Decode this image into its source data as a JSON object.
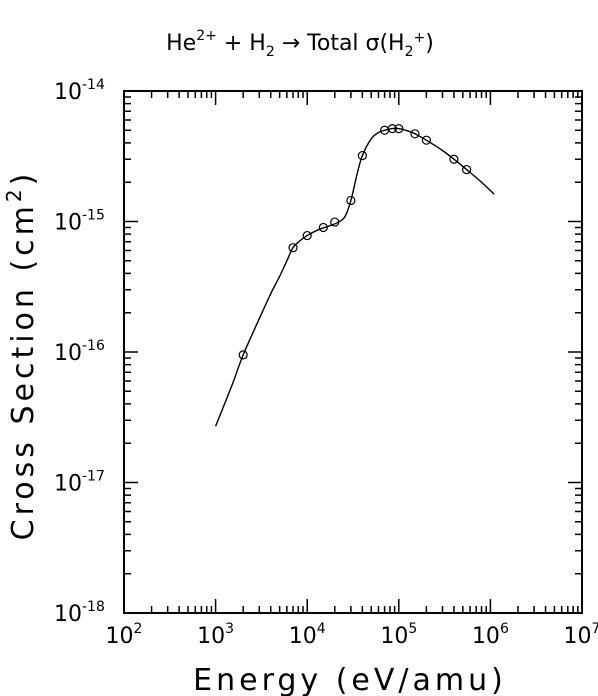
{
  "title": {
    "part1": "He",
    "sup1": "2+",
    "part2": " + H",
    "sub1": "2",
    "part3": " → Total σ(H",
    "sub2": "2",
    "sup2": "+",
    "part4": ")"
  },
  "axes": {
    "xlabel": "Energy (eV/amu)",
    "ylabel_prefix": "Cross Section (cm",
    "ylabel_sup": "2",
    "ylabel_suffix": ")"
  },
  "chart_data": {
    "type": "scatter",
    "title": "He2+ + H2 → Total σ(H2+)",
    "xlabel": "Energy (eV/amu)",
    "ylabel": "Cross Section (cm2)",
    "xscale": "log",
    "yscale": "log",
    "xlim": [
      100,
      10000000
    ],
    "ylim": [
      1e-18,
      1e-14
    ],
    "x_ticks": [
      {
        "base": "10",
        "exp": "2"
      },
      {
        "base": "10",
        "exp": "3"
      },
      {
        "base": "10",
        "exp": "4"
      },
      {
        "base": "10",
        "exp": "5"
      },
      {
        "base": "10",
        "exp": "6"
      },
      {
        "base": "10",
        "exp": "7"
      }
    ],
    "y_ticks": [
      {
        "base": "10",
        "exp": "-18"
      },
      {
        "base": "10",
        "exp": "-17"
      },
      {
        "base": "10",
        "exp": "-16"
      },
      {
        "base": "10",
        "exp": "-15"
      },
      {
        "base": "10",
        "exp": "-14"
      }
    ],
    "series": [
      {
        "style": "markers",
        "marker": "open-circle",
        "points": [
          [
            2000,
            9.5e-17
          ],
          [
            7000,
            6.3e-16
          ],
          [
            10000,
            7.8e-16
          ],
          [
            15000,
            9e-16
          ],
          [
            20000,
            9.9e-16
          ],
          [
            30000,
            1.45e-15
          ],
          [
            40000,
            3.2e-15
          ],
          [
            70000,
            5e-15
          ],
          [
            85000,
            5.15e-15
          ],
          [
            100000,
            5.15e-15
          ],
          [
            150000,
            4.7e-15
          ],
          [
            200000,
            4.2e-15
          ],
          [
            400000,
            3e-15
          ],
          [
            550000,
            2.5e-15
          ]
        ]
      },
      {
        "style": "line",
        "points": [
          [
            1000,
            2.7e-17
          ],
          [
            1500,
            5.5e-17
          ],
          [
            2000,
            9.5e-17
          ],
          [
            3000,
            1.8e-16
          ],
          [
            4000,
            2.8e-16
          ],
          [
            5000,
            3.8e-16
          ],
          [
            6000,
            5e-16
          ],
          [
            7000,
            6.3e-16
          ],
          [
            8500,
            7.2e-16
          ],
          [
            10000,
            7.8e-16
          ],
          [
            13000,
            8.6e-16
          ],
          [
            17000,
            9.2e-16
          ],
          [
            22000,
            9.9e-16
          ],
          [
            26000,
            1.1e-15
          ],
          [
            30000,
            1.45e-15
          ],
          [
            35000,
            2.3e-15
          ],
          [
            40000,
            3.2e-15
          ],
          [
            50000,
            4.3e-15
          ],
          [
            60000,
            4.8e-15
          ],
          [
            70000,
            5e-15
          ],
          [
            85000,
            5.15e-15
          ],
          [
            100000,
            5.15e-15
          ],
          [
            130000,
            4.9e-15
          ],
          [
            150000,
            4.7e-15
          ],
          [
            200000,
            4.2e-15
          ],
          [
            300000,
            3.5e-15
          ],
          [
            400000,
            3e-15
          ],
          [
            550000,
            2.5e-15
          ],
          [
            800000,
            2e-15
          ],
          [
            1100000,
            1.62e-15
          ]
        ]
      }
    ]
  }
}
